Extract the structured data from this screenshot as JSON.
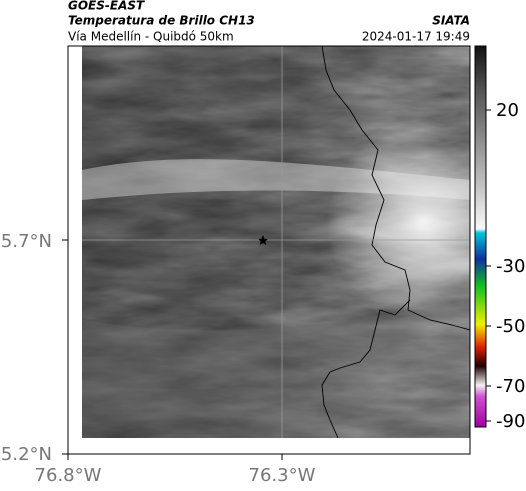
{
  "header": {
    "satellite": "GOES-EAST",
    "product": "Temperatura de Brillo CH13",
    "route": "Vía Medellín - Quibdó 50km",
    "source": "SIATA",
    "timestamp": "2024-01-17 19:49"
  },
  "map": {
    "lat_ticks": [
      "5.7°N",
      "5.2°N"
    ],
    "lon_ticks": [
      "76.8°W",
      "76.3°W"
    ]
  },
  "colorbar": {
    "ticks": [
      "20",
      "-30",
      "-50",
      "-70",
      "-90"
    ]
  }
}
